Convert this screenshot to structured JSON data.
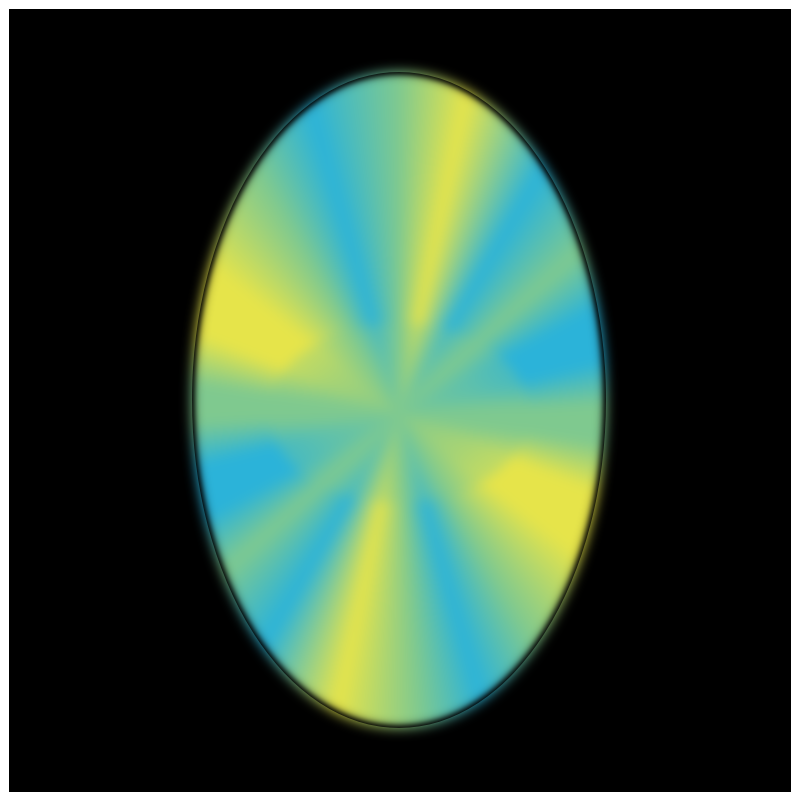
{
  "image": {
    "background_color": "#000000",
    "border_color": "#ffffff",
    "colors": {
      "yellow": "#e6e44a",
      "blue": "#2bb3d9",
      "green": "#7fc98f"
    },
    "shape": "ellipse"
  }
}
